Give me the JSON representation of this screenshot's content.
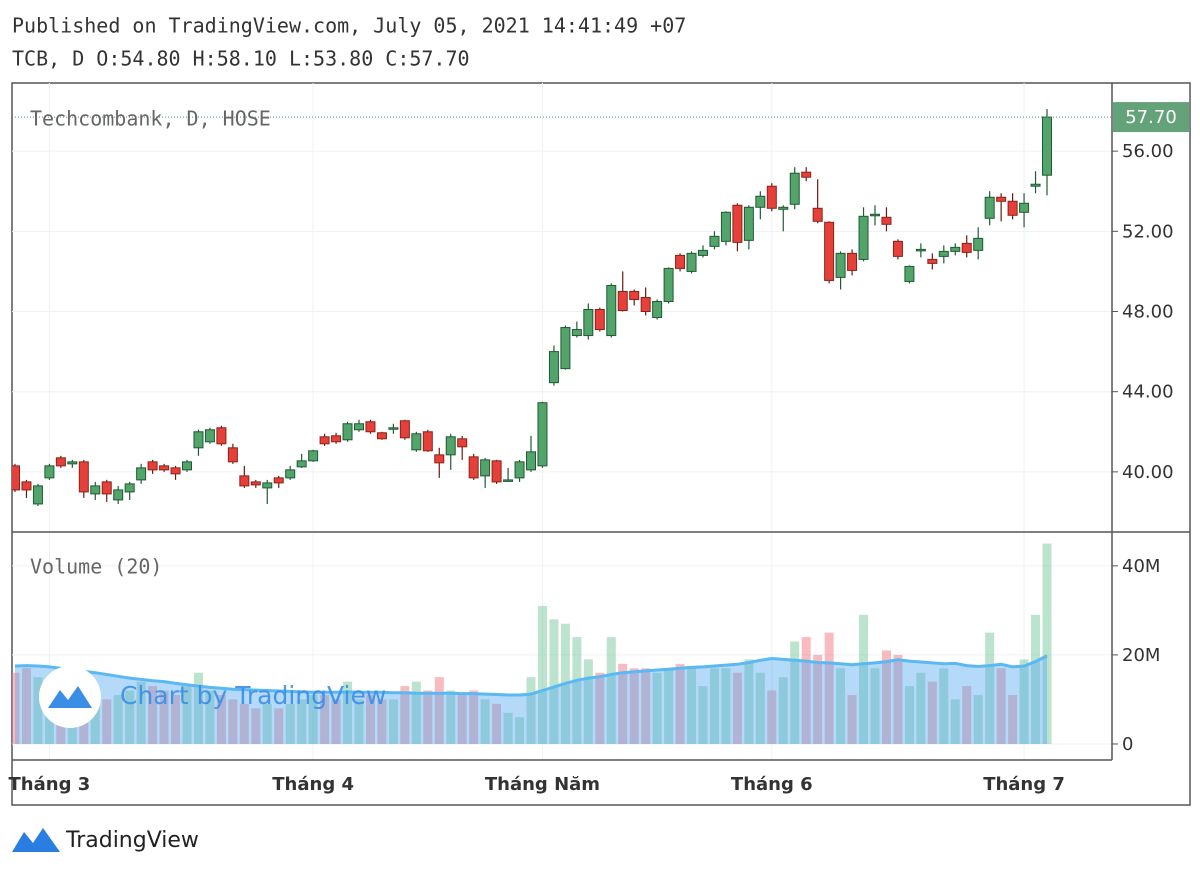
{
  "header": {
    "line1": "Published on TradingView.com, July 05, 2021 14:41:49 +07",
    "line2": "TCB, D O:54.80 H:58.10 L:53.80 C:57.70"
  },
  "watermark": "Chart by TradingView",
  "footer": "TradingView",
  "chart_data": [
    {
      "type": "candlestick",
      "title": "Techcombank, D, HOSE",
      "categories": [
        null,
        null,
        null,
        "Tháng 3",
        null,
        null,
        null,
        null,
        null,
        null,
        null,
        null,
        null,
        null,
        null,
        null,
        null,
        null,
        null,
        null,
        null,
        null,
        null,
        null,
        null,
        null,
        "Tháng 4",
        null,
        null,
        null,
        null,
        null,
        null,
        null,
        null,
        null,
        null,
        null,
        null,
        null,
        null,
        null,
        null,
        null,
        null,
        null,
        "Tháng Năm",
        null,
        null,
        null,
        null,
        null,
        null,
        null,
        null,
        null,
        null,
        null,
        null,
        null,
        null,
        null,
        null,
        null,
        null,
        null,
        "Tháng 6",
        null,
        null,
        null,
        null,
        null,
        null,
        null,
        null,
        null,
        null,
        null,
        null,
        null,
        null,
        null,
        null,
        null,
        null,
        null,
        null,
        null,
        "Tháng 7",
        null,
        null
      ],
      "open": [
        40.3,
        39.5,
        38.4,
        39.7,
        40.7,
        40.4,
        40.5,
        38.9,
        39.5,
        38.6,
        39.0,
        39.6,
        40.5,
        40.3,
        40.2,
        40.1,
        41.2,
        41.5,
        42.2,
        41.2,
        39.8,
        39.5,
        39.2,
        39.7,
        39.7,
        40.25,
        40.55,
        41.75,
        41.8,
        41.6,
        42.1,
        42.5,
        41.95,
        42.15,
        42.55,
        41.1,
        42.0,
        40.85,
        40.85,
        41.65,
        40.75,
        39.8,
        40.55,
        39.55,
        39.7,
        40.1,
        40.3,
        44.45,
        45.15,
        46.8,
        46.8,
        48.1,
        46.8,
        49.0,
        49.0,
        48.7,
        47.7,
        48.5,
        50.8,
        50.0,
        50.8,
        51.25,
        51.5,
        53.3,
        51.55,
        53.2,
        54.25,
        53.1,
        53.35,
        54.95,
        53.15,
        52.45,
        49.7,
        50.9,
        50.6,
        52.8,
        52.7,
        51.5,
        49.5,
        51.05,
        50.6,
        50.75,
        51.0,
        51.4,
        51.05,
        52.65,
        53.7,
        53.5,
        52.95,
        54.25,
        54.8
      ],
      "high": [
        40.4,
        39.6,
        39.4,
        40.4,
        40.8,
        40.6,
        40.6,
        39.5,
        39.6,
        39.3,
        39.5,
        40.4,
        40.6,
        40.4,
        40.3,
        40.6,
        42.1,
        42.2,
        42.3,
        41.4,
        40.3,
        39.6,
        39.6,
        39.8,
        40.3,
        40.9,
        41.1,
        41.9,
        41.95,
        42.5,
        42.6,
        42.6,
        42.0,
        42.4,
        42.6,
        42.0,
        42.1,
        41.2,
        41.9,
        41.8,
        40.9,
        40.7,
        40.6,
        40.2,
        40.6,
        41.8,
        43.5,
        46.3,
        47.3,
        47.5,
        48.4,
        48.2,
        49.4,
        50.0,
        49.1,
        49.2,
        48.6,
        50.2,
        50.9,
        51.0,
        51.3,
        52.0,
        53.0,
        53.4,
        53.3,
        54.0,
        54.4,
        53.3,
        55.2,
        55.2,
        54.6,
        52.5,
        51.0,
        51.1,
        53.2,
        53.3,
        53.2,
        51.6,
        50.3,
        51.4,
        50.9,
        51.3,
        51.4,
        51.8,
        52.2,
        54.0,
        53.9,
        53.9,
        53.9,
        55.0,
        58.1
      ],
      "low": [
        39.0,
        38.7,
        38.3,
        39.6,
        40.2,
        40.2,
        38.7,
        38.6,
        38.5,
        38.4,
        38.6,
        39.4,
        39.9,
        40.0,
        39.6,
        40.0,
        40.8,
        41.4,
        41.3,
        40.4,
        39.2,
        39.2,
        38.4,
        39.2,
        39.6,
        40.2,
        40.5,
        41.3,
        41.4,
        41.5,
        42.0,
        41.9,
        41.6,
        41.9,
        41.6,
        41.0,
        41.0,
        39.7,
        40.1,
        40.6,
        39.6,
        39.2,
        39.4,
        39.5,
        39.5,
        40.0,
        40.2,
        44.3,
        45.1,
        46.7,
        46.6,
        47.0,
        46.7,
        48.0,
        48.3,
        47.8,
        47.6,
        48.4,
        50.0,
        49.9,
        50.7,
        51.1,
        51.3,
        51.0,
        51.1,
        52.6,
        53.0,
        52.0,
        53.1,
        54.5,
        52.4,
        49.4,
        49.1,
        49.8,
        50.5,
        52.3,
        52.0,
        50.6,
        49.4,
        50.7,
        50.1,
        50.4,
        50.8,
        50.7,
        50.6,
        52.3,
        52.5,
        52.6,
        52.2,
        53.9,
        53.8
      ],
      "close": [
        39.1,
        39.1,
        39.3,
        40.3,
        40.3,
        40.5,
        39.0,
        39.3,
        38.9,
        39.1,
        39.4,
        40.2,
        40.1,
        40.1,
        39.9,
        40.5,
        42.0,
        42.1,
        41.4,
        40.5,
        39.3,
        39.35,
        39.45,
        39.45,
        40.1,
        40.55,
        41.05,
        41.4,
        41.5,
        42.4,
        42.4,
        42.0,
        41.65,
        42.2,
        41.7,
        41.9,
        41.05,
        40.45,
        41.75,
        41.25,
        39.7,
        40.6,
        39.5,
        39.6,
        40.5,
        41.0,
        43.45,
        46.0,
        47.2,
        47.1,
        48.1,
        47.1,
        49.3,
        48.05,
        48.6,
        48.0,
        48.5,
        50.15,
        50.15,
        50.9,
        51.05,
        51.75,
        52.95,
        51.45,
        53.2,
        53.75,
        53.15,
        53.2,
        54.9,
        54.7,
        52.5,
        49.55,
        50.9,
        50.05,
        52.75,
        52.85,
        52.35,
        50.75,
        50.25,
        51.1,
        50.4,
        51.0,
        51.2,
        50.95,
        51.65,
        53.7,
        53.5,
        52.8,
        53.4,
        54.35,
        57.7
      ],
      "up_color": "#53a46b",
      "down_color": "#e5413a",
      "price_line": {
        "value": 57.7,
        "label": "57.70"
      },
      "ylim": [
        37,
        59.4
      ],
      "yticks": [
        {
          "value": 40,
          "label": "40.00"
        },
        {
          "value": 44,
          "label": "44.00"
        },
        {
          "value": 48,
          "label": "48.00"
        },
        {
          "value": 52,
          "label": "52.00"
        },
        {
          "value": 56,
          "label": "56.00"
        }
      ],
      "grid": true
    },
    {
      "type": "volume",
      "title": "Volume (20)",
      "values": [
        16000000,
        17000000,
        15000000,
        12000000,
        11000000,
        10000000,
        13000000,
        11000000,
        10000000,
        11000000,
        12000000,
        14000000,
        13000000,
        12000000,
        11000000,
        13000000,
        16000000,
        12000000,
        11000000,
        10000000,
        9000000,
        8000000,
        9000000,
        8000000,
        9000000,
        10000000,
        11000000,
        11000000,
        10000000,
        14000000,
        10000000,
        11000000,
        10000000,
        10000000,
        13000000,
        14000000,
        12000000,
        15000000,
        12000000,
        11000000,
        12000000,
        10000000,
        9000000,
        7000000,
        6000000,
        15000000,
        31000000,
        28000000,
        27000000,
        24000000,
        19000000,
        16000000,
        24000000,
        18000000,
        17000000,
        17000000,
        16000000,
        17000000,
        18000000,
        17000000,
        13000000,
        17000000,
        17000000,
        16000000,
        19000000,
        16000000,
        12000000,
        15000000,
        23000000,
        24000000,
        20000000,
        25000000,
        17000000,
        11000000,
        29000000,
        17000000,
        21000000,
        20000000,
        13000000,
        16000000,
        14000000,
        17000000,
        10000000,
        13000000,
        11000000,
        25000000,
        17000000,
        11000000,
        19000000,
        29000000,
        45000000
      ],
      "ma_values": [
        17500000,
        17600000,
        17500000,
        17300000,
        17000000,
        16600000,
        16300000,
        16000000,
        15600000,
        15200000,
        14800000,
        14500000,
        14200000,
        14000000,
        13600000,
        13300000,
        13000000,
        12700000,
        12500000,
        12300000,
        12200000,
        12100000,
        12000000,
        11900000,
        11800000,
        11700000,
        11600000,
        11600000,
        11600000,
        11700000,
        11600000,
        11600000,
        11600000,
        11500000,
        11500000,
        11400000,
        11400000,
        11400000,
        11400000,
        11300000,
        11300000,
        11200000,
        11100000,
        11000000,
        11000000,
        11200000,
        12000000,
        12800000,
        13600000,
        14300000,
        14800000,
        15100000,
        15600000,
        16000000,
        16200000,
        16400000,
        16600000,
        16800000,
        17000000,
        17200000,
        17300000,
        17500000,
        17700000,
        17900000,
        18300000,
        18800000,
        19200000,
        19000000,
        18800000,
        18600000,
        18300000,
        18200000,
        18000000,
        17800000,
        18000000,
        18200000,
        18500000,
        18900000,
        18600000,
        18400000,
        18200000,
        18000000,
        18100000,
        17600000,
        17400000,
        17600000,
        17900000,
        17300000,
        17500000,
        18500000,
        19800000
      ],
      "up_color": "rgba(120,200,155,0.5)",
      "down_color": "rgba(240,120,130,0.5)",
      "ma_color": "#5ab8f2",
      "ma_fill": "rgba(90,170,240,0.45)",
      "ylim": [
        -3600000,
        47600000
      ],
      "yticks": [
        0,
        {
          "value": 20000000,
          "label": "20M"
        },
        {
          "value": 40000000,
          "label": "40M"
        }
      ],
      "grid": true
    }
  ]
}
